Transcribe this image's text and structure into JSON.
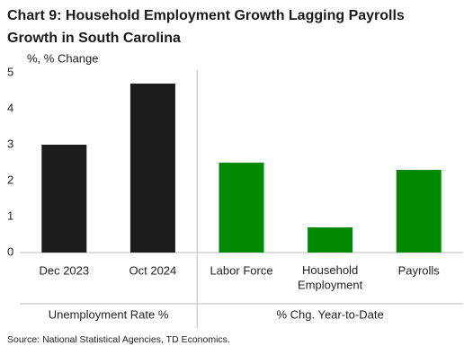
{
  "chart_data": {
    "type": "bar",
    "title_lines": [
      "Chart 9: Household Employment Growth Lagging Payrolls",
      "Growth in South Carolina"
    ],
    "y_label": "%, % Change",
    "categories": [
      "Dec 2023",
      "Oct 2024",
      "Labor Force",
      "Household Employment",
      "Payrolls"
    ],
    "values": [
      3.0,
      4.7,
      2.5,
      0.7,
      2.3
    ],
    "colors": [
      "#1c1c1c",
      "#1c1c1c",
      "#008a00",
      "#008a00",
      "#008a00"
    ],
    "groups": [
      {
        "name": "Unemployment Rate %",
        "size": 2
      },
      {
        "name": "% Chg. Year-to-Date",
        "size": 3
      }
    ],
    "ylim": [
      0,
      5
    ],
    "yticks": [
      0,
      1,
      2,
      3,
      4,
      5
    ],
    "source": "Source: National Statistical Agencies, TD Economics."
  }
}
